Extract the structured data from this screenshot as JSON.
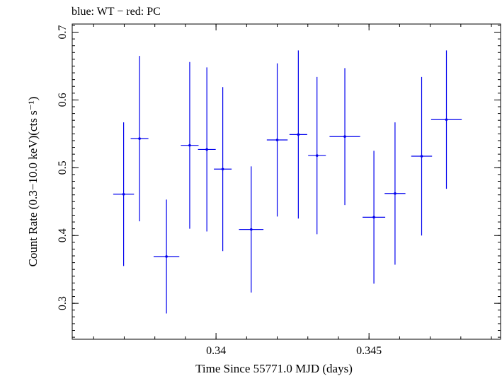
{
  "header": {
    "legend_text": "blue: WT − red: PC"
  },
  "chart_data": {
    "type": "scatter",
    "title": "blue: WT − red: PC",
    "xlabel": "Time Since 55771.0 MJD (days)",
    "ylabel": "Count Rate (0.3−10.0 keV)(cts s⁻¹)",
    "xlim": [
      0.3353,
      0.3493
    ],
    "ylim": [
      0.247,
      0.712
    ],
    "x_ticks": [
      0.34,
      0.345
    ],
    "x_tick_labels": [
      "0.34",
      "0.345"
    ],
    "y_ticks": [
      0.3,
      0.4,
      0.5,
      0.6,
      0.7
    ],
    "y_tick_labels": [
      "0.3",
      "0.4",
      "0.5",
      "0.6",
      "0.7"
    ],
    "grid": false,
    "series": [
      {
        "color": "#0000ee",
        "points": [
          {
            "x": 0.33698,
            "xerr": 0.00034,
            "y": 0.461,
            "yerr": 0.106
          },
          {
            "x": 0.3375,
            "xerr": 0.00029,
            "y": 0.543,
            "yerr": 0.122
          },
          {
            "x": 0.33838,
            "xerr": 0.00042,
            "y": 0.369,
            "yerr": 0.084
          },
          {
            "x": 0.33914,
            "xerr": 0.00029,
            "y": 0.533,
            "yerr": 0.123
          },
          {
            "x": 0.3397,
            "xerr": 0.00029,
            "y": 0.527,
            "yerr": 0.121
          },
          {
            "x": 0.34022,
            "xerr": 0.00029,
            "y": 0.498,
            "yerr": 0.121
          },
          {
            "x": 0.34115,
            "xerr": 0.0004,
            "y": 0.409,
            "yerr": 0.093
          },
          {
            "x": 0.342,
            "xerr": 0.00034,
            "y": 0.541,
            "yerr": 0.113
          },
          {
            "x": 0.34269,
            "xerr": 0.00029,
            "y": 0.549,
            "yerr": 0.124
          },
          {
            "x": 0.3433,
            "xerr": 0.00029,
            "y": 0.518,
            "yerr": 0.116
          },
          {
            "x": 0.34421,
            "xerr": 0.0005,
            "y": 0.546,
            "yerr": 0.101
          },
          {
            "x": 0.34516,
            "xerr": 0.00037,
            "y": 0.427,
            "yerr": 0.098
          },
          {
            "x": 0.34585,
            "xerr": 0.00034,
            "y": 0.462,
            "yerr": 0.105
          },
          {
            "x": 0.34672,
            "xerr": 0.00034,
            "y": 0.517,
            "yerr": 0.117
          },
          {
            "x": 0.34753,
            "xerr": 0.0005,
            "y": 0.571,
            "yerr": 0.102
          }
        ]
      }
    ]
  }
}
